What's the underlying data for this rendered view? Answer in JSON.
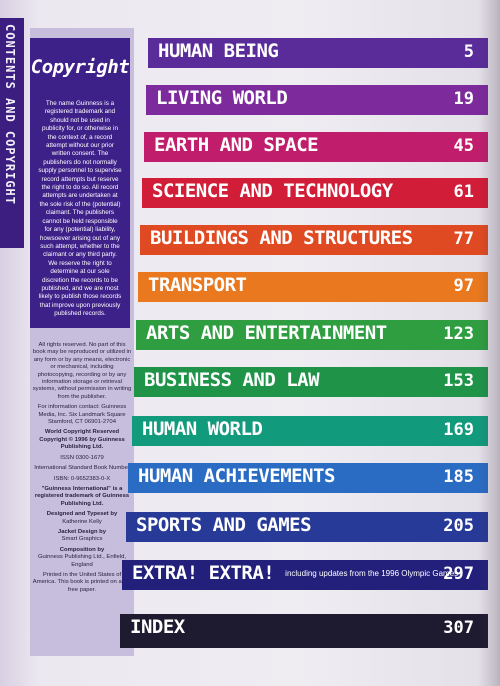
{
  "spine": {
    "text": "CONTENTS AND COPYRIGHT"
  },
  "copyright": {
    "title": "Copyright",
    "body": "The name Guinness is a registered trademark and should not be used in publicity for, or otherwise in the context of, a record attempt without our prior written consent. The publishers do not normally supply personnel to supervise record attempts but reserve the right to do so. All record attempts are undertaken at the sole risk of the (potential) claimant. The publishers cannot be held responsible for any (potential) liability, howsoever arising out of any such attempt, whether to the claimant or any third party. We reserve the right to determine at our sole discretion the records to be published, and we are most likely to publish those records that improve upon previously published records."
  },
  "legal": {
    "rights": "All rights reserved. No part of this book may be reproduced or utilized in any form or by any means, electronic or mechanical, including photocopying, recording or by any information storage or retrieval systems, without permission in writing from the publisher.",
    "contact": "For information contact: Guinness Media, Inc. Six Landmark Square Stamford, CT 06901-2704",
    "world_copyright": "World Copyright Reserved Copyright © 1996 by Guinness Publishing Ltd.",
    "issn": "ISSN 0300-1679",
    "isbn_label": "International Standard Book Number",
    "isbn": "ISBN: 0-9652383-0-X",
    "trademark": "\"Guinness International\" is a registered trademark of Guinness Publishing Ltd.",
    "designed_label": "Designed and Typeset by",
    "designed_name": "Katherine Kelly",
    "jacket_label": "Jacket Design by",
    "jacket_name": "Smart Graphics",
    "composition_label": "Composition by",
    "composition_name": "Guinness Publishing Ltd., Enfield, England",
    "printed": "Printed in the United States of America. This book is printed on acid-free paper."
  },
  "sections": [
    {
      "title": "HUMAN BEING",
      "subtitle": "",
      "page": "5",
      "color": "#5a2c9a"
    },
    {
      "title": "LIVING WORLD",
      "subtitle": "",
      "page": "19",
      "color": "#7c2a9c"
    },
    {
      "title": "EARTH AND SPACE",
      "subtitle": "",
      "page": "45",
      "color": "#c01e6c"
    },
    {
      "title": "SCIENCE AND TECHNOLOGY",
      "subtitle": "",
      "page": "61",
      "color": "#d11d38"
    },
    {
      "title": "BUILDINGS AND STRUCTURES",
      "subtitle": "",
      "page": "77",
      "color": "#e04a22"
    },
    {
      "title": "TRANSPORT",
      "subtitle": "",
      "page": "97",
      "color": "#e9781e"
    },
    {
      "title": "ARTS AND ENTERTAINMENT",
      "subtitle": "",
      "page": "123",
      "color": "#2f9e40"
    },
    {
      "title": "BUSINESS AND LAW",
      "subtitle": "",
      "page": "153",
      "color": "#1f9448"
    },
    {
      "title": "HUMAN WORLD",
      "subtitle": "",
      "page": "169",
      "color": "#129a7c"
    },
    {
      "title": "HUMAN ACHIEVEMENTS",
      "subtitle": "",
      "page": "185",
      "color": "#2a6cc4"
    },
    {
      "title": "SPORTS AND GAMES",
      "subtitle": "",
      "page": "205",
      "color": "#283a98"
    },
    {
      "title": "EXTRA! EXTRA!",
      "subtitle": "including updates from the 1996 Olympic Games",
      "page": "297",
      "color": "#23207c"
    },
    {
      "title": "INDEX",
      "subtitle": "",
      "page": "307",
      "color": "#1e1a30"
    }
  ]
}
